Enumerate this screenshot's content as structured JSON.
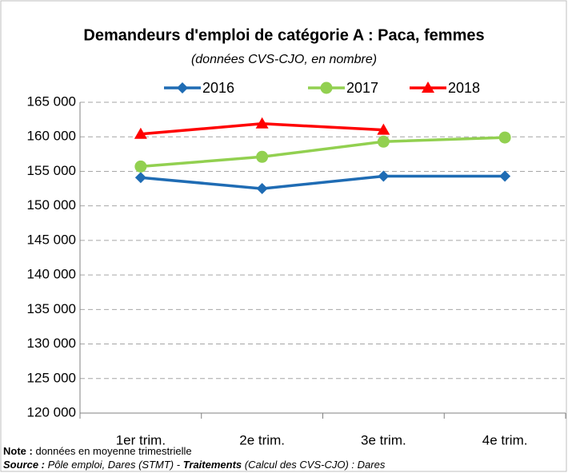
{
  "chart_data": {
    "type": "line",
    "title": "Demandeurs d'emploi de catégorie A : Paca, femmes",
    "subtitle": "(données CVS-CJO, en nombre)",
    "categories": [
      "1er trim.",
      "2e trim.",
      "3e trim.",
      "4e trim."
    ],
    "series": [
      {
        "name": "2016",
        "color": "#1f6cb4",
        "marker": "diamond",
        "values": [
          154100,
          152500,
          154300,
          154300
        ]
      },
      {
        "name": "2017",
        "color": "#92d050",
        "marker": "circle",
        "values": [
          155700,
          157100,
          159300,
          159900
        ]
      },
      {
        "name": "2018",
        "color": "#ff0000",
        "marker": "triangle",
        "values": [
          160400,
          161900,
          161000,
          null
        ]
      }
    ],
    "ylim": [
      120000,
      165000
    ],
    "yticks": [
      {
        "value": 120000,
        "label": "120 000"
      },
      {
        "value": 125000,
        "label": "125 000"
      },
      {
        "value": 130000,
        "label": "130 000"
      },
      {
        "value": 135000,
        "label": "135 000"
      },
      {
        "value": 140000,
        "label": "140 000"
      },
      {
        "value": 145000,
        "label": "145 000"
      },
      {
        "value": 150000,
        "label": "150 000"
      },
      {
        "value": 155000,
        "label": "155 000"
      },
      {
        "value": 160000,
        "label": "160 000"
      },
      {
        "value": 165000,
        "label": "165 000"
      }
    ],
    "grid": true,
    "legend": "top",
    "note": {
      "label": "Note :",
      "text": "données en moyenne trimestrielle"
    },
    "source": {
      "label": "Source :",
      "text": "Pôle emploi, Dares (STMT) -",
      "label2": "Traitements",
      "text2": "(Calcul des CVS-CJO) : Dares"
    }
  }
}
